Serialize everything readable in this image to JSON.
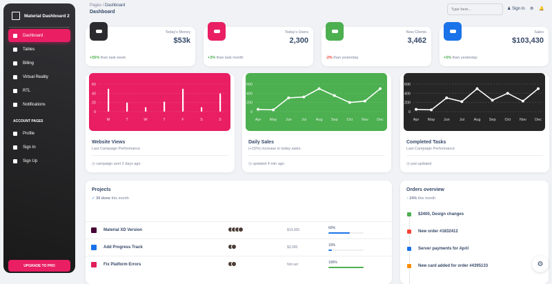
{
  "sidebar": {
    "brand": "Material Dashboard 2",
    "items": [
      {
        "label": "Dashboard",
        "icon": "dashboard-icon"
      },
      {
        "label": "Tables",
        "icon": "table-icon"
      },
      {
        "label": "Billing",
        "icon": "receipt-icon"
      },
      {
        "label": "Virtual Reality",
        "icon": "view-in-ar-icon"
      },
      {
        "label": "RTL",
        "icon": "format-textdirection-icon"
      },
      {
        "label": "Notifications",
        "icon": "bell-icon"
      }
    ],
    "section": "ACCOUNT PAGES",
    "account_items": [
      {
        "label": "Profile",
        "icon": "person-icon"
      },
      {
        "label": "Sign In",
        "icon": "login-icon"
      },
      {
        "label": "Sign Up",
        "icon": "assignment-icon"
      }
    ],
    "upgrade": "UPGRADE TO PRO"
  },
  "header": {
    "crumb_root": "Pages",
    "crumb_sep": "/",
    "crumb_current": "Dashboard",
    "title": "Dashboard",
    "search_placeholder": "Type here...",
    "sign_in": "Sign In"
  },
  "stats": [
    {
      "label": "Today's Money",
      "value": "$53k",
      "change": "+55%",
      "text": " than lask week",
      "color": "#2b2b2f",
      "change_color": "#4caf50"
    },
    {
      "label": "Today's Users",
      "value": "2,300",
      "change": "+3%",
      "text": " than lask month",
      "color": "#e91e63",
      "change_color": "#4caf50"
    },
    {
      "label": "New Clients",
      "value": "3,462",
      "change": "-2%",
      "text": " than yesterday",
      "color": "#4caf50",
      "change_color": "#f44335"
    },
    {
      "label": "Sales",
      "value": "$103,430",
      "change": "+5%",
      "text": " than yesterday",
      "color": "#1a73e8",
      "change_color": "#4caf50"
    }
  ],
  "charts": [
    {
      "title": "Website Views",
      "subtitle": "Last Campaign Performance",
      "footer": "campaign sent 2 days ago",
      "color": "#e91e63"
    },
    {
      "title": "Daily Sales",
      "subtitle": "(+15%) increase in today sales.",
      "footer": "updated 4 min ago",
      "color": "#4caf50"
    },
    {
      "title": "Completed Tasks",
      "subtitle": "Last Campaign Performance",
      "footer": "just updated",
      "color": "#262626"
    }
  ],
  "chart_data": [
    {
      "type": "bar",
      "categories": [
        "M",
        "T",
        "W",
        "T",
        "F",
        "S",
        "S"
      ],
      "values": [
        50,
        20,
        10,
        22,
        50,
        10,
        40
      ],
      "ylim": [
        0,
        60
      ],
      "yticks": [
        0,
        20,
        40,
        60
      ]
    },
    {
      "type": "line",
      "categories": [
        "Apr",
        "May",
        "Jun",
        "Jul",
        "Aug",
        "Sep",
        "Oct",
        "Nov",
        "Dec"
      ],
      "values": [
        50,
        40,
        300,
        320,
        500,
        350,
        200,
        230,
        500
      ],
      "ylim": [
        0,
        600
      ],
      "yticks": [
        0,
        200,
        400,
        600
      ]
    },
    {
      "type": "line",
      "categories": [
        "Apr",
        "May",
        "Jun",
        "Jul",
        "Aug",
        "Sep",
        "Oct",
        "Nov",
        "Dec"
      ],
      "values": [
        50,
        40,
        300,
        220,
        500,
        250,
        400,
        230,
        500
      ],
      "ylim": [
        0,
        600
      ],
      "yticks": [
        0,
        200,
        400,
        600
      ]
    }
  ],
  "projects": {
    "title": "Projects",
    "done": "30 done",
    "done_suffix": " this month",
    "rows": [
      {
        "name": "Material XD Version",
        "budget": "$14,000",
        "completion": "60%",
        "progress": 60,
        "bar": "#1a73e8",
        "icon": "adobe-xd-icon",
        "members": 4
      },
      {
        "name": "Add Progress Track",
        "budget": "$3,000",
        "completion": "10%",
        "progress": 10,
        "bar": "#1a73e8",
        "icon": "atlassian-icon",
        "members": 2
      },
      {
        "name": "Fix Platform Errors",
        "budget": "Not set",
        "completion": "100%",
        "progress": 100,
        "bar": "#4caf50",
        "icon": "slack-icon",
        "members": 2
      }
    ]
  },
  "orders": {
    "title": "Orders overview",
    "change": "24%",
    "suffix": " this month",
    "items": [
      {
        "text": "$2400, Design changes",
        "icon": "bell-icon",
        "color": "#4caf50"
      },
      {
        "text": "New order #1832412",
        "icon": "code-icon",
        "color": "#f44335"
      },
      {
        "text": "Server payments for April",
        "icon": "cart-icon",
        "color": "#1a73e8"
      },
      {
        "text": "New card added for order #4395133",
        "icon": "credit-card-icon",
        "color": "#fb8c00"
      }
    ]
  }
}
